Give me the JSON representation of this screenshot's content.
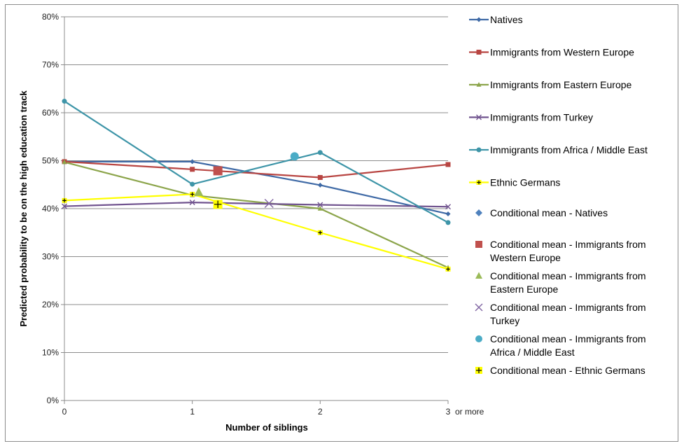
{
  "chart_data": {
    "type": "line",
    "title": "",
    "xlabel": "Number of siblings",
    "ylabel": "Predicted probability to be on the high education track",
    "x": [
      0,
      1,
      2,
      3
    ],
    "x_tick_labels": [
      "0",
      "1",
      "2",
      "3"
    ],
    "x_last_label_suffix": "or more",
    "ylim": [
      0,
      0.8
    ],
    "y_ticks": [
      0,
      0.1,
      0.2,
      0.3,
      0.4,
      0.5,
      0.6,
      0.7,
      0.8
    ],
    "y_tick_labels": [
      "0%",
      "10%",
      "20%",
      "30%",
      "40%",
      "50%",
      "60%",
      "70%",
      "80%"
    ],
    "grid": "horizontal",
    "legend_position": "right",
    "series": [
      {
        "name": "Natives",
        "color": "#3f6aa6",
        "marker": "diamond",
        "values": [
          0.498,
          0.498,
          0.449,
          0.389
        ]
      },
      {
        "name": "Immigrants from Western Europe",
        "color": "#b84542",
        "marker": "square",
        "values": [
          0.498,
          0.482,
          0.465,
          0.492
        ]
      },
      {
        "name": "Immigrants from Eastern Europe",
        "color": "#8ca54b",
        "marker": "triangle",
        "values": [
          0.497,
          0.428,
          0.4,
          0.277
        ]
      },
      {
        "name": "Immigrants from Turkey",
        "color": "#71548f",
        "marker": "x",
        "values": [
          0.405,
          0.413,
          0.408,
          0.404
        ]
      },
      {
        "name": "Immigrants from Africa / Middle East",
        "color": "#3e95a8",
        "marker": "circle",
        "values": [
          0.624,
          0.451,
          0.517,
          0.371
        ]
      },
      {
        "name": "Ethnic Germans",
        "color": "#ffff00",
        "marker": "plus",
        "values": [
          0.417,
          0.43,
          0.35,
          0.274
        ]
      }
    ],
    "conditional_means": [
      {
        "name": "Conditional mean - Natives",
        "legend_lines": [
          "Conditional mean - Natives"
        ],
        "color": "#4f81bd",
        "marker": "diamond",
        "x": null,
        "y": null
      },
      {
        "name": "Conditional mean - Immigrants from Western Europe",
        "legend_lines": [
          "Conditional mean - Immigrants from",
          "Western Europe"
        ],
        "color": "#c0504d",
        "marker": "square",
        "x": 1.2,
        "y": 0.479
      },
      {
        "name": "Conditional mean - Immigrants from Eastern Europe",
        "legend_lines": [
          "Conditional mean - Immigrants from",
          "Eastern Europe"
        ],
        "color": "#9bbb59",
        "marker": "triangle",
        "x": 1.05,
        "y": 0.434
      },
      {
        "name": "Conditional mean - Immigrants from Turkey",
        "legend_lines": [
          "Conditional mean - Immigrants from",
          "Turkey"
        ],
        "color": "#8064a2",
        "marker": "x",
        "x": 1.6,
        "y": 0.411
      },
      {
        "name": "Conditional mean - Immigrants from Africa / Middle East",
        "legend_lines": [
          "Conditional mean - Immigrants from",
          "Africa / Middle East"
        ],
        "color": "#4bacc6",
        "marker": "circle",
        "x": 1.8,
        "y": 0.509
      },
      {
        "name": "Conditional mean - Ethnic Germans",
        "legend_lines": [
          "Conditional mean - Ethnic Germans"
        ],
        "color": "#ffff00",
        "marker": "plus",
        "x": 1.2,
        "y": 0.409
      }
    ]
  }
}
